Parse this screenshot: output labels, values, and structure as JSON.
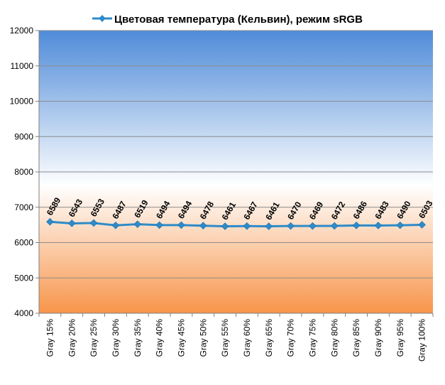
{
  "chart_data": {
    "type": "line",
    "title": "Цветовая температура (Кельвин), режим sRGB",
    "xlabel": "",
    "ylabel": "",
    "categories": [
      "Gray 15%",
      "Gray 20%",
      "Gray 25%",
      "Gray 30%",
      "Gray 35%",
      "Gray 40%",
      "Gray 45%",
      "Gray 50%",
      "Gray 55%",
      "Gray 60%",
      "Gray 65%",
      "Gray 70%",
      "Gray 75%",
      "Gray 80%",
      "Gray 85%",
      "Gray 90%",
      "Gray 95%",
      "Gray 100%"
    ],
    "series": [
      {
        "name": "Цветовая температура (Кельвин), режим sRGB",
        "values": [
          6589,
          6543,
          6553,
          6487,
          6519,
          6494,
          6494,
          6478,
          6461,
          6467,
          6461,
          6470,
          6469,
          6472,
          6486,
          6483,
          6490,
          6503
        ],
        "color": "#2E8BC9"
      }
    ],
    "ylim": [
      4000,
      12000
    ],
    "yticks": [
      4000,
      5000,
      6000,
      7000,
      8000,
      9000,
      10000,
      11000,
      12000
    ],
    "grid": true,
    "legend_position": "top",
    "background_gradient": {
      "top": "#4F8BD9",
      "middle": "#FFFFFF",
      "bottom": "#F7954A"
    }
  }
}
